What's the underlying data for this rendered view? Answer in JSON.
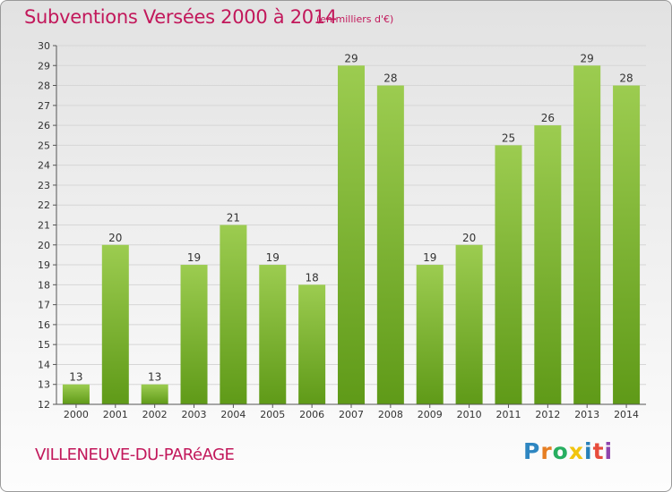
{
  "chart_data": {
    "type": "bar",
    "title": "Subventions Versées 2000 à 2014",
    "subtitle": "(en milliers d'€)",
    "categories": [
      "2000",
      "2001",
      "2002",
      "2003",
      "2004",
      "2005",
      "2006",
      "2007",
      "2008",
      "2009",
      "2010",
      "2011",
      "2012",
      "2013",
      "2014"
    ],
    "values": [
      13,
      20,
      13,
      19,
      21,
      19,
      18,
      29,
      28,
      19,
      20,
      25,
      26,
      29,
      28
    ],
    "ylim": [
      12,
      30
    ],
    "yticks": [
      12,
      13,
      14,
      15,
      16,
      17,
      18,
      19,
      20,
      21,
      22,
      23,
      24,
      25,
      26,
      27,
      28,
      29,
      30
    ],
    "grid": true,
    "bar_color_top": "#9ccc50",
    "bar_color_bottom": "#5f9a18"
  },
  "footer": {
    "place": "VILLENEUVE-DU-PARéAGE",
    "logo_letters": [
      "P",
      "r",
      "o",
      "x",
      "i",
      "t",
      "i"
    ]
  }
}
